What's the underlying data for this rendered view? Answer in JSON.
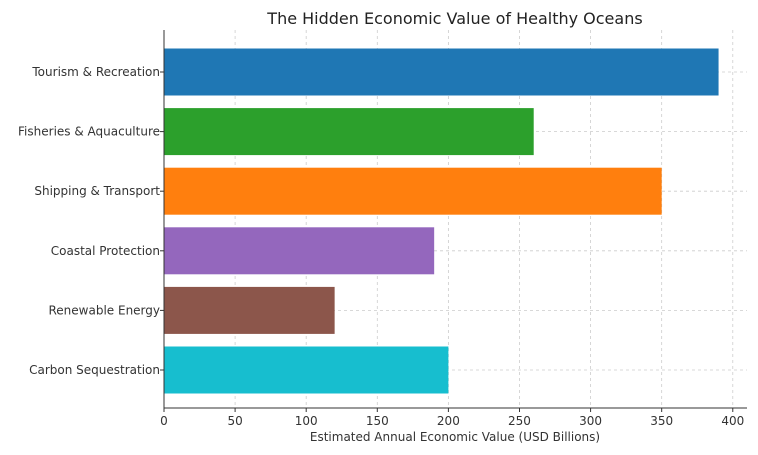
{
  "chart_data": {
    "type": "bar",
    "orientation": "horizontal",
    "title": "The Hidden Economic Value of Healthy Oceans",
    "xlabel": "Estimated Annual Economic Value (USD Billions)",
    "ylabel": "",
    "xlim": [
      0,
      410
    ],
    "xticks": [
      0,
      50,
      100,
      150,
      200,
      250,
      300,
      350,
      400
    ],
    "grid": true,
    "categories": [
      "Tourism & Recreation",
      "Fisheries & Aquaculture",
      "Shipping & Transport",
      "Coastal Protection",
      "Renewable Energy",
      "Carbon Sequestration"
    ],
    "values": [
      390,
      260,
      350,
      190,
      120,
      200
    ],
    "colors": [
      "#1f77b4",
      "#2ca02c",
      "#ff7f0e",
      "#9467bd",
      "#8c564b",
      "#17becf"
    ]
  }
}
